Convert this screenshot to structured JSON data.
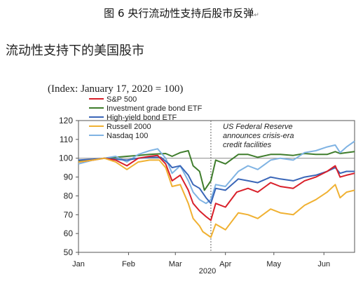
{
  "figure_caption": {
    "text": "图 6 央行流动性支持后股市反弹",
    "return_mark": "↵"
  },
  "subtitle": "流动性支持下的美国股市",
  "chart_data": {
    "type": "line",
    "index_note": "(Index: January 17, 2020 = 100)",
    "ylim": [
      50,
      120
    ],
    "y_ticks": [
      50,
      60,
      70,
      80,
      90,
      100,
      110,
      120
    ],
    "xlim": [
      "2020-01-01",
      "2020-06-20"
    ],
    "x_ticks": [
      {
        "label": "Jan",
        "date": "2020-01-01"
      },
      {
        "label": "Feb",
        "date": "2020-02-01"
      },
      {
        "label": "Mar",
        "date": "2020-03-01"
      },
      {
        "label": "Apr",
        "date": "2020-04-01"
      },
      {
        "label": "May",
        "date": "2020-05-01"
      },
      {
        "label": "Jun",
        "date": "2020-06-01"
      }
    ],
    "year_label": "2020",
    "reference_line_y": 100,
    "event_line": {
      "date": "2020-03-23",
      "text_lines": [
        "US Federal Reserve",
        "announces crisis-era",
        "credit facilities"
      ]
    },
    "legend_position": "top-left",
    "series": [
      {
        "name": "S&P 500",
        "color": "#d9202a",
        "points": [
          [
            "2020-01-01",
            98
          ],
          [
            "2020-01-10",
            99
          ],
          [
            "2020-01-17",
            100
          ],
          [
            "2020-01-24",
            99
          ],
          [
            "2020-01-31",
            96
          ],
          [
            "2020-02-07",
            100
          ],
          [
            "2020-02-14",
            101
          ],
          [
            "2020-02-19",
            101.5
          ],
          [
            "2020-02-24",
            97
          ],
          [
            "2020-02-28",
            88
          ],
          [
            "2020-03-04",
            91
          ],
          [
            "2020-03-09",
            83
          ],
          [
            "2020-03-12",
            76
          ],
          [
            "2020-03-16",
            72
          ],
          [
            "2020-03-20",
            69
          ],
          [
            "2020-03-23",
            67
          ],
          [
            "2020-03-26",
            76
          ],
          [
            "2020-04-01",
            74
          ],
          [
            "2020-04-08",
            82
          ],
          [
            "2020-04-15",
            84
          ],
          [
            "2020-04-21",
            82
          ],
          [
            "2020-04-29",
            87
          ],
          [
            "2020-05-05",
            85
          ],
          [
            "2020-05-13",
            84
          ],
          [
            "2020-05-20",
            88
          ],
          [
            "2020-05-27",
            90
          ],
          [
            "2020-06-03",
            93
          ],
          [
            "2020-06-08",
            96
          ],
          [
            "2020-06-11",
            90
          ],
          [
            "2020-06-15",
            91
          ],
          [
            "2020-06-20",
            92
          ]
        ]
      },
      {
        "name": "Investment grade bond ETF",
        "color": "#3f7d2c",
        "points": [
          [
            "2020-01-01",
            98.5
          ],
          [
            "2020-01-10",
            99
          ],
          [
            "2020-01-17",
            100
          ],
          [
            "2020-01-24",
            100.5
          ],
          [
            "2020-01-31",
            101
          ],
          [
            "2020-02-07",
            101.5
          ],
          [
            "2020-02-14",
            102
          ],
          [
            "2020-02-24",
            102.5
          ],
          [
            "2020-02-28",
            101
          ],
          [
            "2020-03-04",
            103
          ],
          [
            "2020-03-09",
            104
          ],
          [
            "2020-03-12",
            96
          ],
          [
            "2020-03-16",
            93
          ],
          [
            "2020-03-19",
            83
          ],
          [
            "2020-03-23",
            88
          ],
          [
            "2020-03-26",
            99
          ],
          [
            "2020-04-01",
            97
          ],
          [
            "2020-04-09",
            102
          ],
          [
            "2020-04-15",
            102
          ],
          [
            "2020-04-21",
            100.5
          ],
          [
            "2020-04-29",
            102
          ],
          [
            "2020-05-05",
            102
          ],
          [
            "2020-05-13",
            101.5
          ],
          [
            "2020-05-20",
            102.5
          ],
          [
            "2020-05-27",
            102
          ],
          [
            "2020-06-03",
            102
          ],
          [
            "2020-06-08",
            103.5
          ],
          [
            "2020-06-11",
            102.5
          ],
          [
            "2020-06-15",
            103
          ],
          [
            "2020-06-20",
            103.5
          ]
        ]
      },
      {
        "name": "High-yield bond ETF",
        "color": "#3a66b8",
        "points": [
          [
            "2020-01-01",
            99
          ],
          [
            "2020-01-10",
            99.5
          ],
          [
            "2020-01-17",
            100
          ],
          [
            "2020-01-24",
            99.5
          ],
          [
            "2020-01-31",
            99
          ],
          [
            "2020-02-07",
            100
          ],
          [
            "2020-02-14",
            100.5
          ],
          [
            "2020-02-21",
            100.5
          ],
          [
            "2020-02-26",
            97
          ],
          [
            "2020-02-28",
            95
          ],
          [
            "2020-03-04",
            96
          ],
          [
            "2020-03-09",
            91
          ],
          [
            "2020-03-12",
            86
          ],
          [
            "2020-03-16",
            84
          ],
          [
            "2020-03-20",
            79
          ],
          [
            "2020-03-23",
            76
          ],
          [
            "2020-03-26",
            84
          ],
          [
            "2020-04-01",
            83
          ],
          [
            "2020-04-09",
            89
          ],
          [
            "2020-04-15",
            88
          ],
          [
            "2020-04-21",
            87
          ],
          [
            "2020-04-29",
            90
          ],
          [
            "2020-05-05",
            89
          ],
          [
            "2020-05-13",
            88
          ],
          [
            "2020-05-20",
            90
          ],
          [
            "2020-05-27",
            91
          ],
          [
            "2020-06-03",
            93
          ],
          [
            "2020-06-08",
            95
          ],
          [
            "2020-06-11",
            92
          ],
          [
            "2020-06-15",
            93
          ],
          [
            "2020-06-20",
            93
          ]
        ]
      },
      {
        "name": "Russell 2000",
        "color": "#f0b132",
        "points": [
          [
            "2020-01-01",
            98
          ],
          [
            "2020-01-10",
            99
          ],
          [
            "2020-01-17",
            100
          ],
          [
            "2020-01-24",
            98
          ],
          [
            "2020-01-31",
            94
          ],
          [
            "2020-02-07",
            98
          ],
          [
            "2020-02-14",
            99
          ],
          [
            "2020-02-20",
            99
          ],
          [
            "2020-02-24",
            95
          ],
          [
            "2020-02-28",
            85
          ],
          [
            "2020-03-04",
            86
          ],
          [
            "2020-03-09",
            76
          ],
          [
            "2020-03-12",
            68
          ],
          [
            "2020-03-16",
            64
          ],
          [
            "2020-03-18",
            61
          ],
          [
            "2020-03-23",
            58
          ],
          [
            "2020-03-26",
            65
          ],
          [
            "2020-04-01",
            62
          ],
          [
            "2020-04-09",
            71
          ],
          [
            "2020-04-15",
            70
          ],
          [
            "2020-04-21",
            68
          ],
          [
            "2020-04-29",
            73
          ],
          [
            "2020-05-05",
            71
          ],
          [
            "2020-05-13",
            70
          ],
          [
            "2020-05-20",
            75
          ],
          [
            "2020-05-27",
            78
          ],
          [
            "2020-06-03",
            82
          ],
          [
            "2020-06-08",
            86
          ],
          [
            "2020-06-11",
            79
          ],
          [
            "2020-06-15",
            82
          ],
          [
            "2020-06-20",
            83
          ]
        ]
      },
      {
        "name": "Nasdaq 100",
        "color": "#7fb3e3",
        "points": [
          [
            "2020-01-01",
            97
          ],
          [
            "2020-01-10",
            99
          ],
          [
            "2020-01-17",
            100
          ],
          [
            "2020-01-24",
            101
          ],
          [
            "2020-01-31",
            98
          ],
          [
            "2020-02-07",
            102
          ],
          [
            "2020-02-14",
            104
          ],
          [
            "2020-02-19",
            105
          ],
          [
            "2020-02-24",
            100
          ],
          [
            "2020-02-28",
            92
          ],
          [
            "2020-03-04",
            96
          ],
          [
            "2020-03-09",
            88
          ],
          [
            "2020-03-12",
            82
          ],
          [
            "2020-03-16",
            78
          ],
          [
            "2020-03-20",
            76
          ],
          [
            "2020-03-23",
            78
          ],
          [
            "2020-03-26",
            86
          ],
          [
            "2020-04-01",
            85
          ],
          [
            "2020-04-09",
            93
          ],
          [
            "2020-04-15",
            96
          ],
          [
            "2020-04-21",
            94
          ],
          [
            "2020-04-29",
            99
          ],
          [
            "2020-05-05",
            100
          ],
          [
            "2020-05-13",
            99
          ],
          [
            "2020-05-20",
            103
          ],
          [
            "2020-05-27",
            104
          ],
          [
            "2020-06-03",
            106
          ],
          [
            "2020-06-08",
            107
          ],
          [
            "2020-06-11",
            103
          ],
          [
            "2020-06-15",
            106
          ],
          [
            "2020-06-20",
            109
          ]
        ]
      }
    ]
  }
}
